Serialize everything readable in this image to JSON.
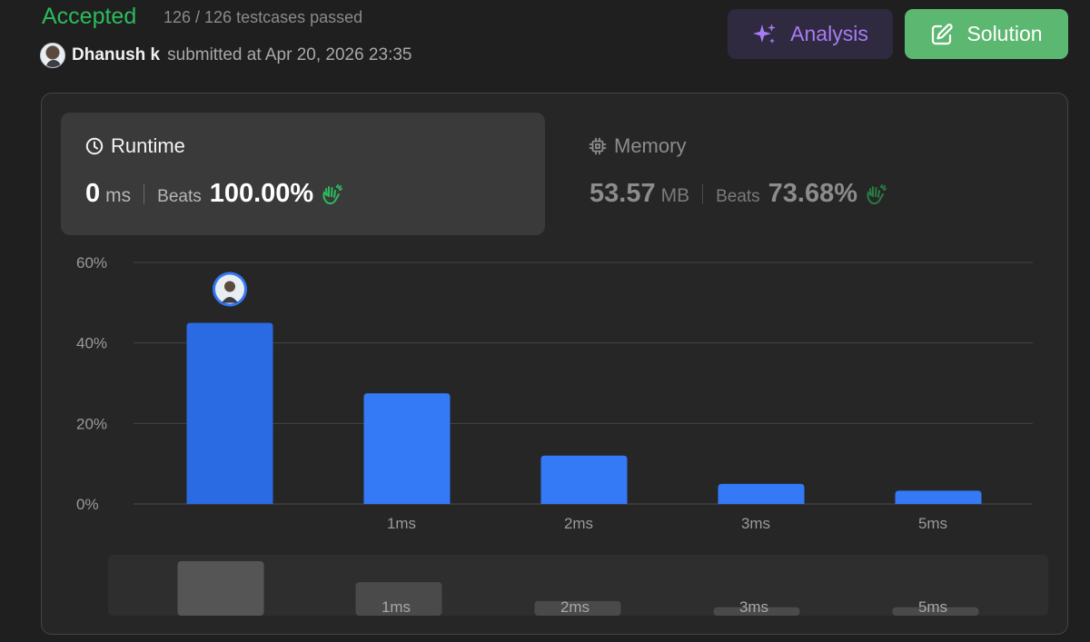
{
  "header": {
    "status": "Accepted",
    "testcases": "126 / 126 testcases passed",
    "user_name": "Dhanush k",
    "submitted_text": "submitted at Apr 20, 2026 23:35",
    "analysis_label": "Analysis",
    "solution_label": "Solution"
  },
  "runtime": {
    "label": "Runtime",
    "value": "0",
    "unit": "ms",
    "beats_label": "Beats",
    "beats_pct": "100.00%"
  },
  "memory": {
    "label": "Memory",
    "value": "53.57",
    "unit": "MB",
    "beats_label": "Beats",
    "beats_pct": "73.68%"
  },
  "colors": {
    "accepted": "#2cbb5d",
    "analysis_accent": "#a87cf5",
    "solution_bg": "#5cb870",
    "bar_selected": "#2a6ae3",
    "bar": "#3479f6",
    "clap": "#2cbb5d"
  },
  "icons": {
    "analysis": "sparkle-icon",
    "solution": "edit-icon",
    "runtime": "clock-icon",
    "memory": "chip-icon",
    "beats": "clapping-hands-icon"
  },
  "chart_data": {
    "type": "bar",
    "categories": [
      "",
      "1ms",
      "2ms",
      "3ms",
      "5ms"
    ],
    "values": [
      45,
      27.5,
      12,
      5,
      3.3
    ],
    "y_ticks": [
      "60%",
      "40%",
      "20%",
      "0%"
    ],
    "ylim": [
      0,
      60
    ],
    "grid": true,
    "highlight_index": 0,
    "overview_values": [
      13,
      8,
      3.5,
      2,
      2
    ]
  }
}
